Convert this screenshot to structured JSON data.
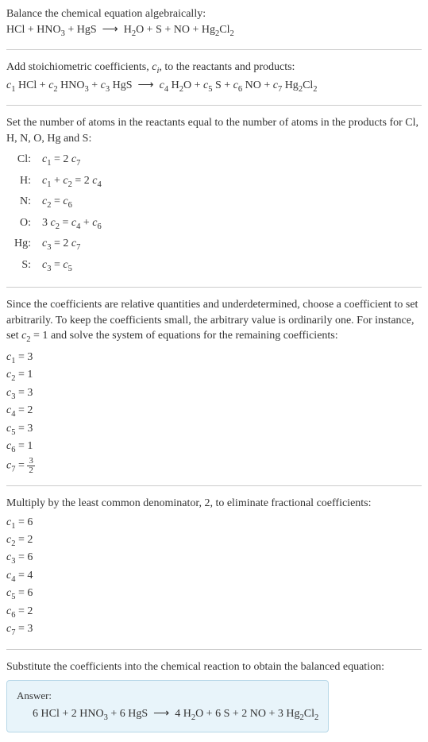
{
  "intro": {
    "line1": "Balance the chemical equation algebraically:",
    "eq1": "HCl + HNO₃ + HgS ⟶ H₂O + S + NO + Hg₂Cl₂"
  },
  "stoich": {
    "line1_a": "Add stoichiometric coefficients, ",
    "line1_b": ", to the reactants and products:",
    "ci": "cᵢ",
    "eq": "c₁ HCl + c₂ HNO₃ + c₃ HgS ⟶ c₄ H₂O + c₅ S + c₆ NO + c₇ Hg₂Cl₂"
  },
  "atoms": {
    "line1": "Set the number of atoms in the reactants equal to the number of atoms in the products for Cl, H, N, O, Hg and S:",
    "rows": [
      {
        "el": "Cl:",
        "eq": "c₁ = 2 c₇"
      },
      {
        "el": "H:",
        "eq": "c₁ + c₂ = 2 c₄"
      },
      {
        "el": "N:",
        "eq": "c₂ = c₆"
      },
      {
        "el": "O:",
        "eq": "3 c₂ = c₄ + c₆"
      },
      {
        "el": "Hg:",
        "eq": "c₃ = 2 c₇"
      },
      {
        "el": "S:",
        "eq": "c₃ = c₅"
      }
    ]
  },
  "underdet": {
    "text_a": "Since the coefficients are relative quantities and underdetermined, choose a coefficient to set arbitrarily. To keep the coefficients small, the arbitrary value is ordinarily one. For instance, set ",
    "c2": "c₂ = 1",
    "text_b": " and solve the system of equations for the remaining coefficients:",
    "coefs": [
      "c₁ = 3",
      "c₂ = 1",
      "c₃ = 3",
      "c₄ = 2",
      "c₅ = 3",
      "c₆ = 1"
    ],
    "c7_label": "c₇ = ",
    "c7_num": "3",
    "c7_den": "2"
  },
  "multiply": {
    "text": "Multiply by the least common denominator, 2, to eliminate fractional coefficients:",
    "coefs": [
      "c₁ = 6",
      "c₂ = 2",
      "c₃ = 6",
      "c₄ = 4",
      "c₅ = 6",
      "c₆ = 2",
      "c₇ = 3"
    ]
  },
  "substitute": {
    "text": "Substitute the coefficients into the chemical reaction to obtain the balanced equation:"
  },
  "answer": {
    "label": "Answer:",
    "eq": "6 HCl + 2 HNO₃ + 6 HgS ⟶ 4 H₂O + 6 S + 2 NO + 3 Hg₂Cl₂"
  },
  "colors": {
    "text": "#333333",
    "hr": "#cccccc",
    "answer_bg": "#e8f4fa",
    "answer_border": "#b8d8e8"
  }
}
